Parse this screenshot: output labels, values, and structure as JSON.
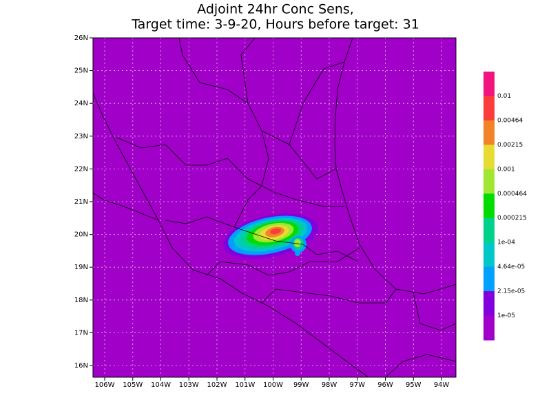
{
  "title": [
    "Adjoint 24hr Conc Sens,",
    "Target time: 3-9-20, Hours before target: 31"
  ],
  "lat_labels": [
    "26N",
    "25N",
    "24N",
    "23N",
    "22N",
    "21N",
    "20N",
    "19N",
    "18N",
    "17N",
    "16N"
  ],
  "lon_labels": [
    "106W",
    "105W",
    "104W",
    "103W",
    "102W",
    "101W",
    "100W",
    "99W",
    "98W",
    "97W",
    "96W",
    "95W",
    "94W"
  ],
  "colorbar": {
    "colors": [
      "#f0147f",
      "#fa3c3c",
      "#f08228",
      "#e6dc32",
      "#a0e632",
      "#00dc00",
      "#00d28c",
      "#00c8c8",
      "#00a0ff",
      "#8200dc",
      "#a000c8"
    ],
    "labels": [
      "0.01",
      "0.00464",
      "0.00215",
      "0.001",
      "0.000464",
      "0.000215",
      "1e-04",
      "4.64e-05",
      "2.15e-05",
      "1e-05"
    ]
  }
}
